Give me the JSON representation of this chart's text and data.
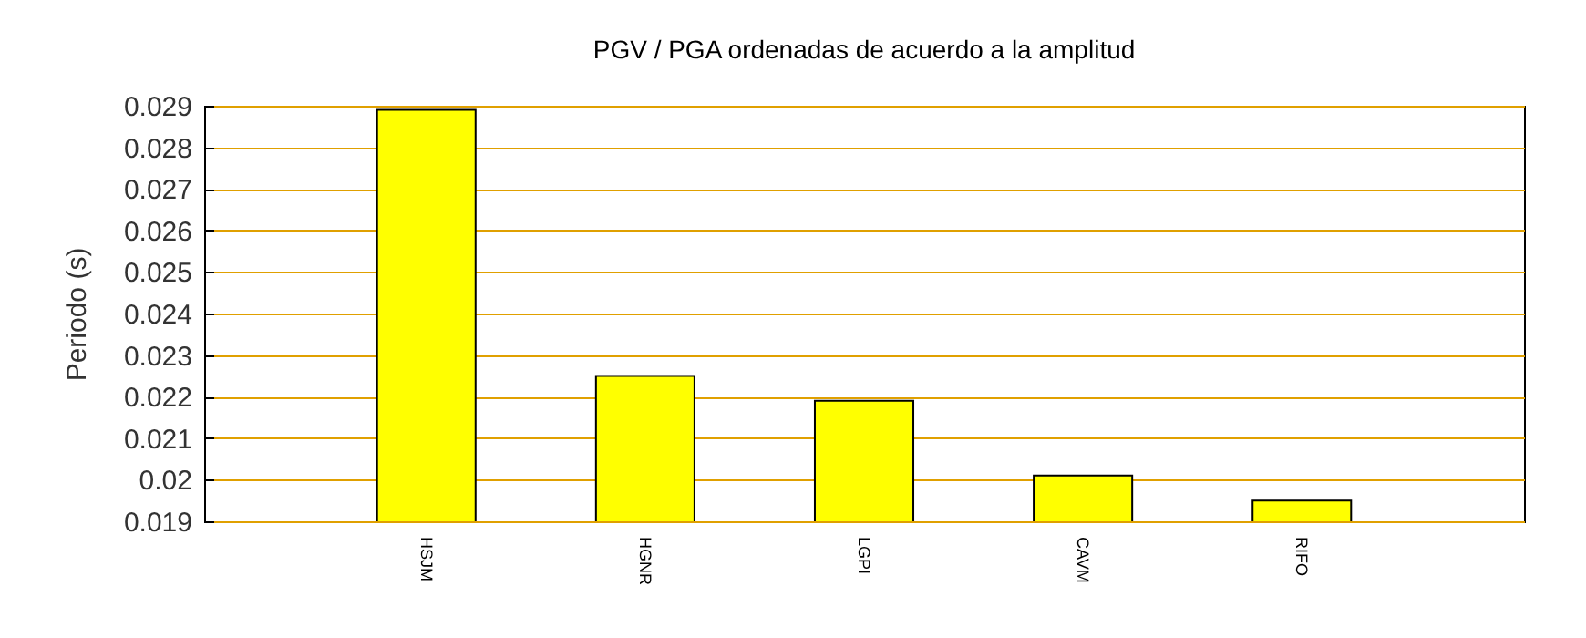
{
  "chart_data": {
    "type": "bar",
    "title": "PGV / PGA ordenadas de acuerdo a la amplitud",
    "ylabel": "Periodo (s)",
    "categories": [
      "HSJM",
      "HGNR",
      "LGPI",
      "CAVM",
      "RIFO"
    ],
    "values": [
      0.0289,
      0.0225,
      0.0219,
      0.0201,
      0.0195
    ],
    "color": "#ffff00",
    "ylim": [
      0.019,
      0.029
    ],
    "yticks": [
      0.019,
      0.02,
      0.021,
      0.022,
      0.023,
      0.024,
      0.025,
      0.026,
      0.027,
      0.028,
      0.029
    ],
    "grid": true
  }
}
